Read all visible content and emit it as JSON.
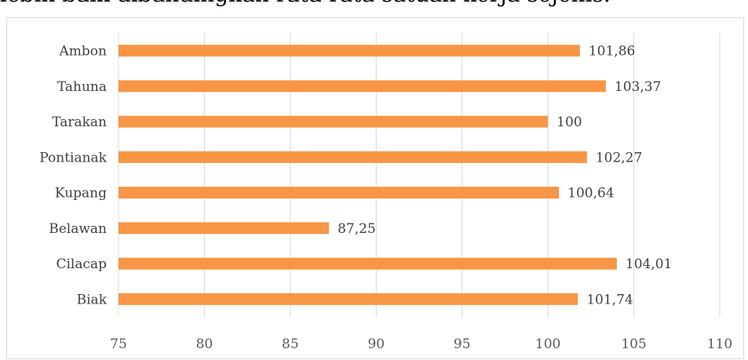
{
  "top_text": "lebih baik dibandingkan rata-rata satuan kerja sejenis.",
  "chart_data": {
    "type": "bar",
    "orientation": "horizontal",
    "categories": [
      "Ambon",
      "Tahuna",
      "Tarakan",
      "Pontianak",
      "Kupang",
      "Belawan",
      "Cilacap",
      "Biak"
    ],
    "values": [
      101.86,
      103.37,
      100,
      102.27,
      100.64,
      87.25,
      104.01,
      101.74
    ],
    "value_labels": [
      "101,86",
      "103,37",
      "100",
      "102,27",
      "100,64",
      "87,25",
      "104,01",
      "101,74"
    ],
    "xlim": [
      75,
      110
    ],
    "xticks": [
      75,
      80,
      85,
      90,
      95,
      100,
      105,
      110
    ],
    "xtick_labels": [
      "75",
      "80",
      "85",
      "90",
      "95",
      "100",
      "105",
      "110"
    ],
    "bar_color": "#f79646",
    "grid": true,
    "legend": false
  }
}
